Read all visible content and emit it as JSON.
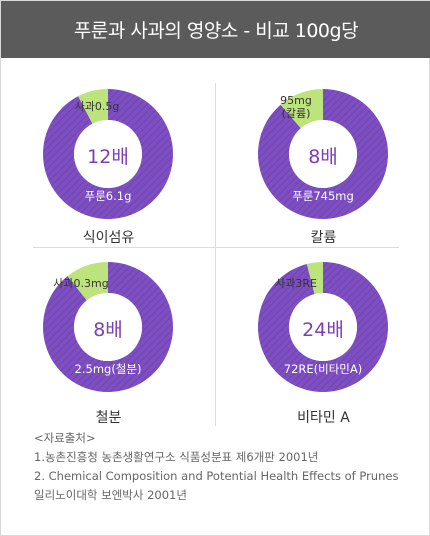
{
  "header": {
    "title": "푸룬과 사과의 영양소 - 비교 100g당"
  },
  "colors": {
    "prune": "#7e4fc1",
    "prune_hatch": "#6d40ae",
    "apple": "#bde37c",
    "ratio_text": "#7b3fb8",
    "header_bg": "#5b5b5b"
  },
  "chart_data": [
    {
      "type": "pie",
      "title": "식이섬유",
      "ratio_label": "12배",
      "slices": [
        {
          "name": "푸룬",
          "label": "푸룬6.1g",
          "value": 6.1
        },
        {
          "name": "사과",
          "label": "사과0.5g",
          "value": 0.5
        }
      ]
    },
    {
      "type": "pie",
      "title": "칼륨",
      "ratio_label": "8배",
      "slices": [
        {
          "name": "푸룬",
          "label": "푸룬745mg",
          "value": 745
        },
        {
          "name": "사과",
          "label": "95mg\n(칼륨)",
          "value": 95
        }
      ]
    },
    {
      "type": "pie",
      "title": "철분",
      "ratio_label": "8배",
      "slices": [
        {
          "name": "푸룬",
          "label": "2.5mg(철분)",
          "value": 2.5
        },
        {
          "name": "사과",
          "label": "사과0.3mg",
          "value": 0.3
        }
      ]
    },
    {
      "type": "pie",
      "title": "비타민 A",
      "ratio_label": "24배",
      "slices": [
        {
          "name": "푸룬",
          "label": "72RE(비타민A)",
          "value": 72
        },
        {
          "name": "사과",
          "label": "사과3RE",
          "value": 3
        }
      ]
    }
  ],
  "source": {
    "heading": "<자료출처>",
    "lines": [
      "1.농촌진흥청 농촌생활연구소 식품성분표 제6개판 2001년",
      "2. Chemical Composition and Potential Health Effects of Prunes",
      "일리노이대학 보엔박사 2001년"
    ]
  }
}
